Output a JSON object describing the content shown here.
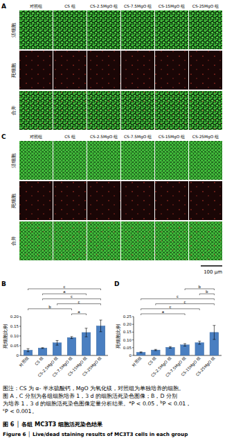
{
  "panels": [
    {
      "label": "A",
      "rows": [
        "活细胞",
        "死细胞",
        "合并"
      ],
      "columns": [
        "对照组",
        "CS 组",
        "CS-2.5MgO 组",
        "CS-7.5MgO 组",
        "CS-15MgO 组",
        "CS-25MgO 组"
      ]
    },
    {
      "label": "C",
      "rows": [
        "活细胞",
        "死细胞",
        "合并"
      ],
      "columns": [
        "对照组",
        "CS 组",
        "CS-2.5MgO 组",
        "CS-7.5MgO 组",
        "CS-15MgO 组",
        "CS-25MgO 组"
      ]
    }
  ],
  "scale_bar": "100 μm",
  "chart_data": [
    {
      "panel": "B",
      "type": "bar",
      "categories": [
        "对照组",
        "CS 组",
        "CS-2.5MgO 组",
        "CS-7.5MgO 组",
        "CS-15MgO 组",
        "CS-25MgO 组"
      ],
      "values": [
        0.027,
        0.038,
        0.065,
        0.092,
        0.118,
        0.152
      ],
      "errors": [
        0.008,
        0.002,
        0.012,
        0.005,
        0.022,
        0.03
      ],
      "color": "#4a7fc1",
      "y_label": "死细胞比例",
      "ylim": [
        0,
        0.2
      ],
      "yticks": [
        0,
        0.05,
        {
          "value": 0.1,
          "label": "0.10"
        },
        0.15,
        {
          "value": 0.2,
          "label": "0.20"
        }
      ],
      "significance": [
        {
          "from": 3,
          "to": 4,
          "label": "a"
        },
        {
          "from": 0,
          "to": 3,
          "label": "b"
        },
        {
          "from": 2,
          "to": 5,
          "label": "c"
        },
        {
          "from": 1,
          "to": 5,
          "label": "c"
        },
        {
          "from": 1,
          "to": 4,
          "label": "a"
        },
        {
          "from": 0,
          "to": 5,
          "label": "c"
        }
      ]
    },
    {
      "panel": "D",
      "type": "bar",
      "categories": [
        "对照组",
        "CS 组",
        "CS-2.5MgO 组",
        "CS-7.5MgO 组",
        "CS-15MgO 组",
        "CS-25MgO 组"
      ],
      "values": [
        0.02,
        0.035,
        0.052,
        0.068,
        0.082,
        0.148
      ],
      "errors": [
        0.003,
        0.004,
        0.005,
        0.008,
        0.01,
        0.045
      ],
      "color": "#4a7fc1",
      "y_label": "死细胞比例",
      "ylim": [
        0,
        0.25
      ],
      "yticks": [
        0,
        0.05,
        {
          "value": 0.1,
          "label": "0.10"
        },
        0.15,
        {
          "value": 0.2,
          "label": "0.20"
        },
        0.25
      ],
      "significance": [
        {
          "from": 0,
          "to": 3,
          "label": "a"
        },
        {
          "from": 0,
          "to": 4,
          "label": "c"
        },
        {
          "from": 1,
          "to": 5,
          "label": "c"
        },
        {
          "from": 0,
          "to": 5,
          "label": "c"
        },
        {
          "from": 4,
          "to": 5,
          "label": "b"
        },
        {
          "from": 3,
          "to": 5,
          "label": "b"
        }
      ]
    }
  ],
  "caption": [
    [
      {
        "text": "图注：CS 为 α- 半水硫酸钙，MgO 为氧化镁，对照组为单独培养的细胞。"
      }
    ],
    [
      {
        "text": "图 A，C 分别为各组细胞培养 1，3 d 的细胞活死染色图像；B，D 分别"
      }
    ],
    [
      {
        "text": "为培养 1，3 d 的细胞活死染色图像定量分析结果。"
      },
      {
        "text": "a",
        "sup": true
      },
      {
        "text": "P < 0.05，"
      },
      {
        "text": "b",
        "sup": true
      },
      {
        "text": "P < 0.01，"
      }
    ],
    [
      {
        "text": "c",
        "sup": true
      },
      {
        "text": "P < 0.001。"
      }
    ]
  ],
  "figure_title": "图 6 │ 各组 MC3T3 细胞活死染色结果",
  "figure_title_en": "Figure 6 │ Live/dead staining results of MC3T3 cells in each group"
}
